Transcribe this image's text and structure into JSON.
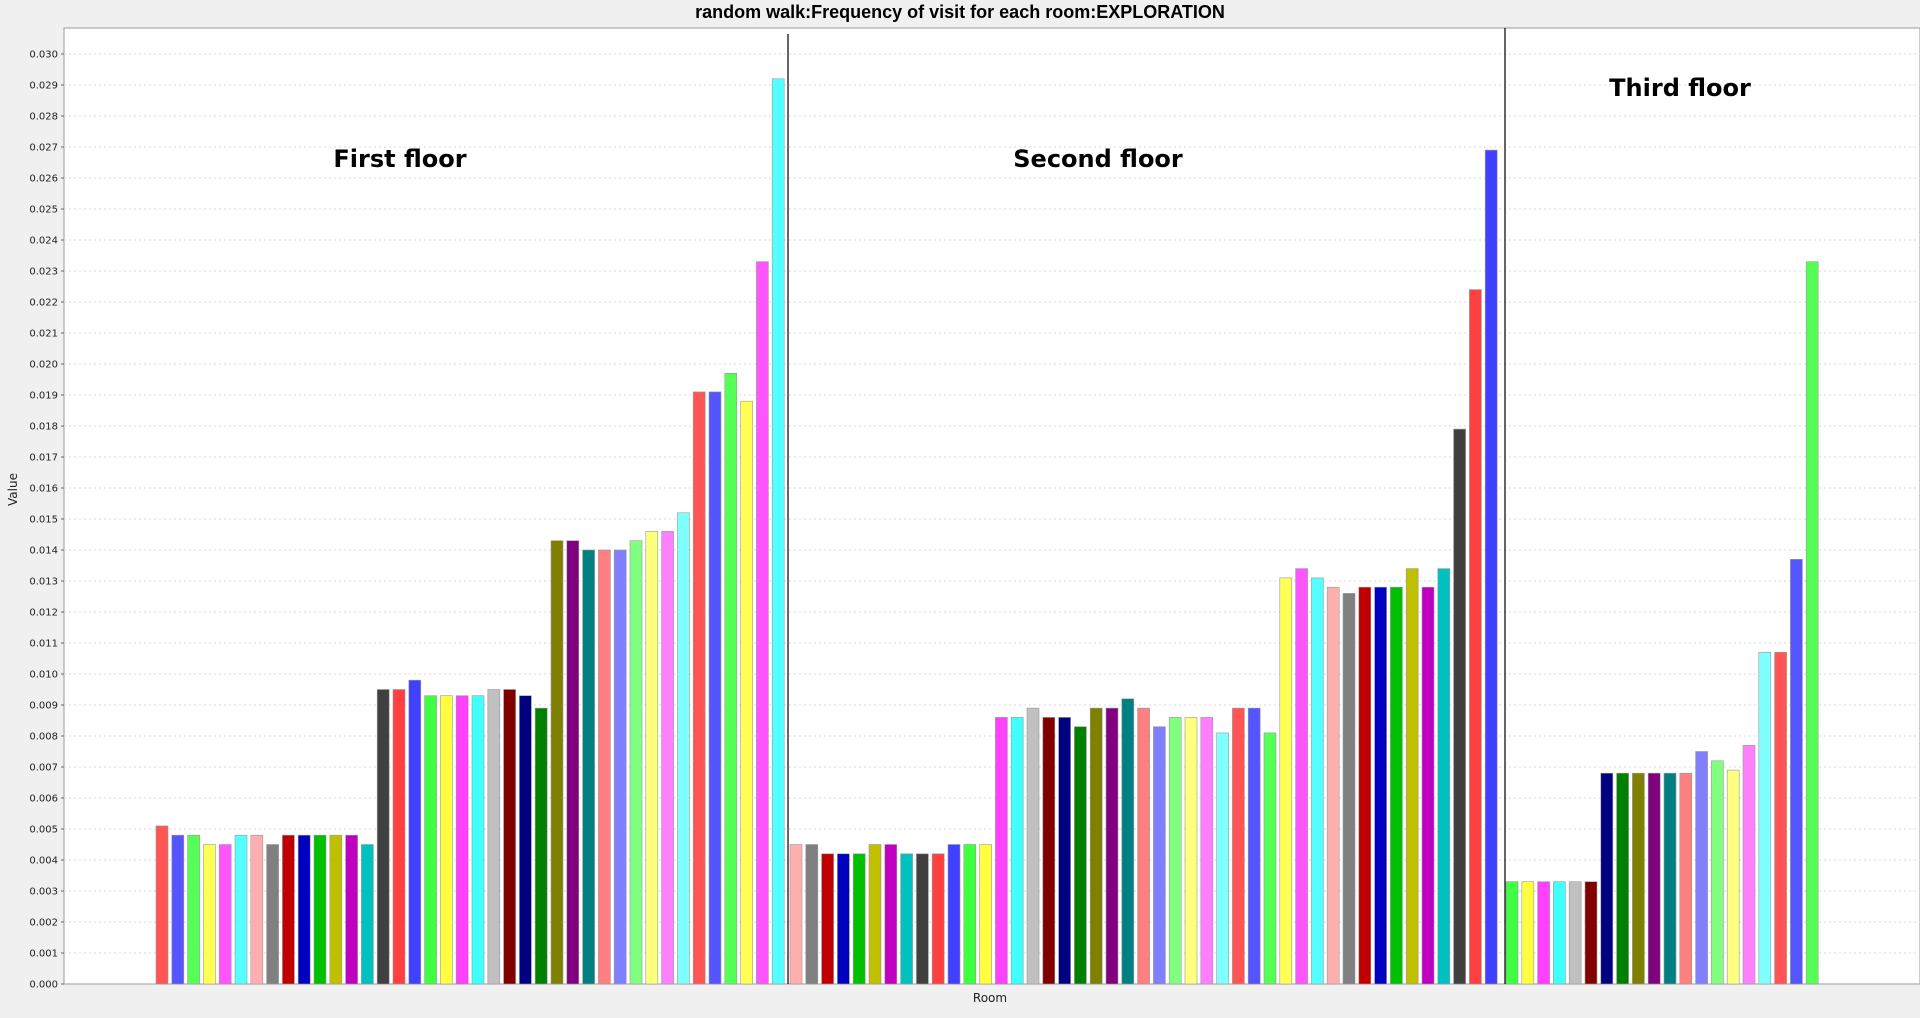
{
  "chart_data": {
    "type": "bar",
    "title": "random walk:Frequency of visit for each room:EXPLORATION",
    "xlabel": "Room",
    "ylabel": "Value",
    "ylim": [
      0.0,
      0.0305
    ],
    "ytick_step": 0.001,
    "grid": true,
    "legend": "none",
    "annotations": [
      "First floor",
      "Second floor",
      "Third floor"
    ],
    "palette": [
      "#ff5555",
      "#5555ff",
      "#55ff55",
      "#ffff55",
      "#ff55ff",
      "#55ffff",
      "#ffafaf",
      "#808080",
      "#c00000",
      "#0000c0",
      "#00c000",
      "#c0c000",
      "#c000c0",
      "#00c0c0",
      "#404040",
      "#ff4040",
      "#4040ff",
      "#40ff40",
      "#ffff40",
      "#ff40ff",
      "#40ffff",
      "#c0c0c0",
      "#800000",
      "#000080",
      "#008000",
      "#808000",
      "#800080",
      "#008080",
      "#ff8080",
      "#8080ff",
      "#80ff80",
      "#ffff80",
      "#ff80ff",
      "#80ffff"
    ],
    "series": [
      {
        "values": [
          0.0051,
          0.0048,
          0.0048,
          0.0045,
          0.0045,
          0.0048,
          0.0048,
          0.0045,
          0.0048,
          0.0048,
          0.0048,
          0.0048,
          0.0048,
          0.0045,
          0.0095,
          0.0095,
          0.0098,
          0.0093,
          0.0093,
          0.0093,
          0.0093,
          0.0095,
          0.0095,
          0.0093,
          0.0089,
          0.0143,
          0.0143,
          0.014,
          0.014,
          0.014,
          0.0143,
          0.0146,
          0.0146,
          0.0152,
          0.0191,
          0.0191,
          0.0197,
          0.0188,
          0.0233,
          0.0292
        ]
      },
      {
        "values": [
          0.0045,
          0.0045,
          0.0042,
          0.0042,
          0.0042,
          0.0045,
          0.0045,
          0.0042,
          0.0042,
          0.0042,
          0.0045,
          0.0045,
          0.0045,
          0.0086,
          0.0086,
          0.0089,
          0.0086,
          0.0086,
          0.0083,
          0.0089,
          0.0089,
          0.0092,
          0.0089,
          0.0083,
          0.0086,
          0.0086,
          0.0086,
          0.0081,
          0.0089,
          0.0089,
          0.0081,
          0.0131,
          0.0134,
          0.0131,
          0.0128,
          0.0126,
          0.0128,
          0.0128,
          0.0128,
          0.0134,
          0.0128,
          0.0134,
          0.0179,
          0.0224,
          0.0269
        ]
      },
      {
        "values": [
          0.0033,
          0.0033,
          0.0033,
          0.0033,
          0.0033,
          0.0033,
          0.0068,
          0.0068,
          0.0068,
          0.0068,
          0.0068,
          0.0068,
          0.0075,
          0.0072,
          0.0069,
          0.0077,
          0.0107,
          0.0107,
          0.0137,
          0.0233
        ]
      }
    ]
  }
}
